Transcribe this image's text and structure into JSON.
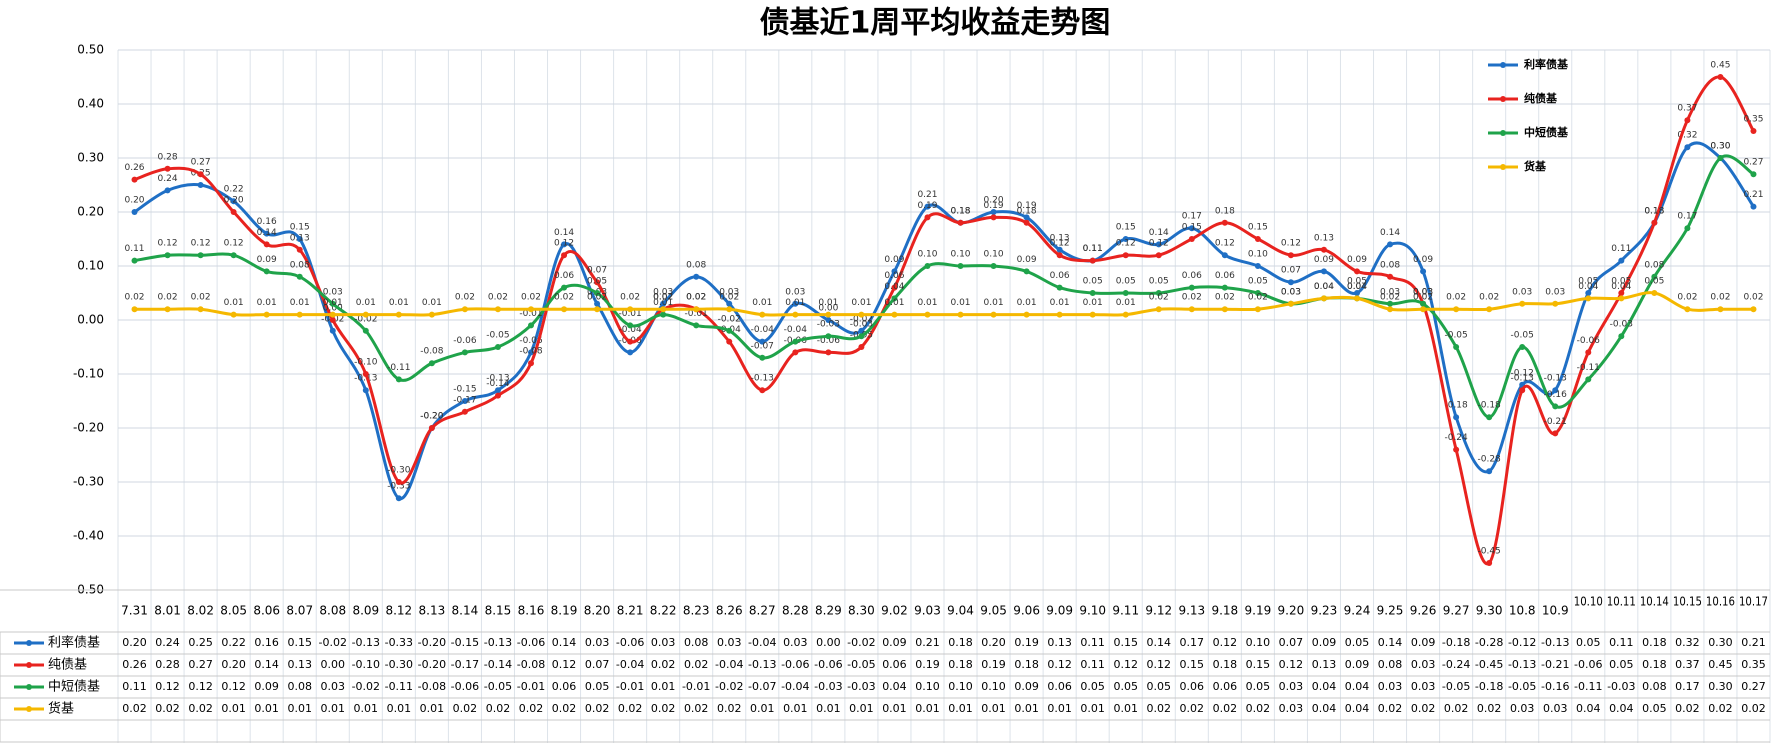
{
  "chart_data": {
    "type": "line",
    "title": "债基近1周平均收益走势图",
    "categories": [
      "7.31",
      "8.01",
      "8.02",
      "8.05",
      "8.06",
      "8.07",
      "8.08",
      "8.09",
      "8.12",
      "8.13",
      "8.14",
      "8.15",
      "8.16",
      "8.19",
      "8.20",
      "8.21",
      "8.22",
      "8.23",
      "8.26",
      "8.27",
      "8.28",
      "8.29",
      "8.30",
      "9.02",
      "9.03",
      "9.04",
      "9.05",
      "9.06",
      "9.09",
      "9.10",
      "9.11",
      "9.12",
      "9.13",
      "9.18",
      "9.19",
      "9.20",
      "9.23",
      "9.24",
      "9.25",
      "9.26",
      "9.27",
      "9.30",
      "10.8",
      "10.9",
      "10.10",
      "10.11",
      "10.14",
      "10.15",
      "10.16",
      "10.17"
    ],
    "ylim": [
      -0.5,
      0.5
    ],
    "yticks": [
      {
        "value": -0.5,
        "label": "-0.50"
      },
      {
        "value": -0.4,
        "label": "-0.40"
      },
      {
        "value": -0.3,
        "label": "-0.30"
      },
      {
        "value": -0.2,
        "label": "-0.20"
      },
      {
        "value": -0.1,
        "label": "-0.10"
      },
      {
        "value": 0,
        "label": "0.00"
      },
      {
        "value": 0.1,
        "label": "0.10"
      },
      {
        "value": 0.2,
        "label": "0.20"
      },
      {
        "value": 0.3,
        "label": "0.30"
      },
      {
        "value": 0.4,
        "label": "0.40"
      },
      {
        "value": 0.5,
        "label": "0.50"
      }
    ],
    "grid": true,
    "legend": "top-right",
    "series": [
      {
        "name": "利率债基",
        "color": "#1f6fc5",
        "values": [
          0.2,
          0.24,
          0.25,
          0.22,
          0.16,
          0.15,
          -0.02,
          -0.13,
          -0.33,
          -0.2,
          -0.15,
          -0.13,
          -0.06,
          0.14,
          0.03,
          -0.06,
          0.03,
          0.08,
          0.03,
          -0.04,
          0.03,
          0.0,
          -0.02,
          0.09,
          0.21,
          0.18,
          0.2,
          0.19,
          0.13,
          0.11,
          0.15,
          0.14,
          0.17,
          0.12,
          0.1,
          0.07,
          0.09,
          0.05,
          0.14,
          0.09,
          -0.18,
          -0.28,
          -0.12,
          -0.13,
          0.05,
          0.11,
          0.18,
          0.32,
          0.3,
          0.21
        ],
        "value_labels": [
          "0.20",
          "0.24",
          "0.25",
          "0.22",
          "0.16",
          "0.15",
          "-0.02",
          "-0.13",
          "-0.33",
          "-0.20",
          "-0.15",
          "-0.13",
          "-0.06",
          "0.14",
          "0.03",
          "-0.06",
          "0.03",
          "0.08",
          "0.03",
          "-0.04",
          "0.03",
          "0.00",
          "-0.02",
          "0.09",
          "0.21",
          "0.18",
          "0.20",
          "0.19",
          "0.13",
          "0.11",
          "0.15",
          "0.14",
          "0.17",
          "0.12",
          "0.10",
          "0.07",
          "0.09",
          "0.05",
          "0.14",
          "0.09",
          "-0.18",
          "-0.28",
          "-0.12",
          "-0.13",
          "0.05",
          "0.11",
          "0.18",
          "0.32",
          "0.30",
          "0.21"
        ]
      },
      {
        "name": "纯债基",
        "color": "#e8231f",
        "values": [
          0.26,
          0.28,
          0.27,
          0.2,
          0.14,
          0.13,
          0.0,
          -0.1,
          -0.3,
          -0.2,
          -0.17,
          -0.14,
          -0.08,
          0.12,
          0.07,
          -0.04,
          0.02,
          0.02,
          -0.04,
          -0.13,
          -0.06,
          -0.06,
          -0.05,
          0.06,
          0.19,
          0.18,
          0.19,
          0.18,
          0.12,
          0.11,
          0.12,
          0.12,
          0.15,
          0.18,
          0.15,
          0.12,
          0.13,
          0.09,
          0.08,
          0.03,
          -0.24,
          -0.45,
          -0.13,
          -0.21,
          -0.06,
          0.05,
          0.18,
          0.37,
          0.45,
          0.35
        ],
        "value_labels": [
          "0.26",
          "0.28",
          "0.27",
          "0.20",
          "0.14",
          "0.13",
          "0.00",
          "-0.10",
          "-0.30",
          "-0.20",
          "-0.17",
          "-0.14",
          "-0.08",
          "0.12",
          "0.07",
          "-0.04",
          "0.02",
          "0.02",
          "-0.04",
          "-0.13",
          "-0.06",
          "-0.06",
          "-0.05",
          "0.06",
          "0.19",
          "0.18",
          "0.19",
          "0.18",
          "0.12",
          "0.11",
          "0.12",
          "0.12",
          "0.15",
          "0.18",
          "0.15",
          "0.12",
          "0.13",
          "0.09",
          "0.08",
          "0.03",
          "-0.24",
          "-0.45",
          "-0.13",
          "-0.21",
          "-0.06",
          "0.05",
          "0.18",
          "0.37",
          "0.45",
          "0.35"
        ]
      },
      {
        "name": "中短债基",
        "color": "#1fa34a",
        "values": [
          0.11,
          0.12,
          0.12,
          0.12,
          0.09,
          0.08,
          0.03,
          -0.02,
          -0.11,
          -0.08,
          -0.06,
          -0.05,
          -0.01,
          0.06,
          0.05,
          -0.01,
          0.01,
          -0.01,
          -0.02,
          -0.07,
          -0.04,
          -0.03,
          -0.03,
          0.04,
          0.1,
          0.1,
          0.1,
          0.09,
          0.06,
          0.05,
          0.05,
          0.05,
          0.06,
          0.06,
          0.05,
          0.03,
          0.04,
          0.04,
          0.03,
          0.03,
          -0.05,
          -0.18,
          -0.05,
          -0.16,
          -0.11,
          -0.03,
          0.08,
          0.17,
          0.3,
          0.27
        ],
        "value_labels": [
          "0.11",
          "0.12",
          "0.12",
          "0.12",
          "0.09",
          "0.08",
          "0.03",
          "-0.02",
          "-0.11",
          "-0.08",
          "-0.06",
          "-0.05",
          "-0.01",
          "0.06",
          "0.05",
          "-0.01",
          "0.01",
          "-0.01",
          "-0.02",
          "-0.07",
          "-0.04",
          "-0.03",
          "-0.03",
          "0.04",
          "0.10",
          "0.10",
          "0.10",
          "0.09",
          "0.06",
          "0.05",
          "0.05",
          "0.05",
          "0.06",
          "0.06",
          "0.05",
          "0.03",
          "0.04",
          "0.04",
          "0.03",
          "0.03",
          "-0.05",
          "-0.18",
          "-0.05",
          "-0.16",
          "-0.11",
          "-0.03",
          "0.08",
          "0.17",
          "0.30",
          "0.27"
        ]
      },
      {
        "name": "货基",
        "color": "#f5b800",
        "values": [
          0.02,
          0.02,
          0.02,
          0.01,
          0.01,
          0.01,
          0.01,
          0.01,
          0.01,
          0.01,
          0.02,
          0.02,
          0.02,
          0.02,
          0.02,
          0.02,
          0.02,
          0.02,
          0.02,
          0.01,
          0.01,
          0.01,
          0.01,
          0.01,
          0.01,
          0.01,
          0.01,
          0.01,
          0.01,
          0.01,
          0.01,
          0.02,
          0.02,
          0.02,
          0.02,
          0.03,
          0.04,
          0.04,
          0.02,
          0.02,
          0.02,
          0.02,
          0.03,
          0.03,
          0.04,
          0.04,
          0.05,
          0.02,
          0.02,
          0.02
        ],
        "value_labels": [
          "0.02",
          "0.02",
          "0.02",
          "0.01",
          "0.01",
          "0.01",
          "0.01",
          "0.01",
          "0.01",
          "0.01",
          "0.02",
          "0.02",
          "0.02",
          "0.02",
          "0.02",
          "0.02",
          "0.02",
          "0.02",
          "0.02",
          "0.01",
          "0.01",
          "0.01",
          "0.01",
          "0.01",
          "0.01",
          "0.01",
          "0.01",
          "0.01",
          "0.01",
          "0.01",
          "0.01",
          "0.02",
          "0.02",
          "0.02",
          "0.02",
          "0.03",
          "0.04",
          "0.04",
          "0.02",
          "0.02",
          "0.02",
          "0.02",
          "0.03",
          "0.03",
          "0.04",
          "0.04",
          "0.05",
          "0.02",
          "0.02",
          "0.02"
        ]
      }
    ]
  }
}
